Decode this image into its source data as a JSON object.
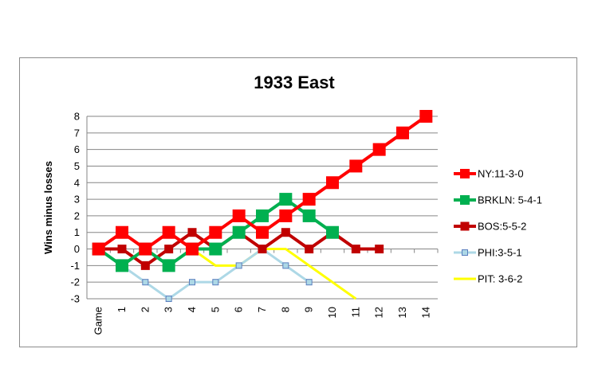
{
  "chart_data": {
    "type": "line",
    "title": "1933 East",
    "xlabel": "",
    "ylabel": "Wins minus losses",
    "categories": [
      "Game",
      "1",
      "2",
      "3",
      "4",
      "5",
      "6",
      "7",
      "8",
      "9",
      "10",
      "11",
      "12",
      "13",
      "14"
    ],
    "ylim": [
      -3,
      8
    ],
    "yticks": [
      8,
      7,
      6,
      5,
      4,
      3,
      2,
      1,
      0,
      -1,
      -2,
      -3
    ],
    "grid": "horizontal",
    "legend_position": "right",
    "series": [
      {
        "name": "NY:11-3-0",
        "color": "#ff0000",
        "marker": "square-large",
        "values": [
          0,
          1,
          0,
          1,
          0,
          1,
          2,
          1,
          2,
          3,
          4,
          5,
          6,
          7,
          8
        ]
      },
      {
        "name": "BRKLN: 5-4-1",
        "color": "#00b050",
        "marker": "square-large",
        "values": [
          0,
          -1,
          0,
          -1,
          0,
          0,
          1,
          2,
          3,
          2,
          1,
          null,
          null,
          null,
          null
        ]
      },
      {
        "name": "BOS:5-5-2",
        "color": "#c00000",
        "marker": "square",
        "values": [
          0,
          0,
          -1,
          0,
          1,
          0,
          1,
          0,
          1,
          0,
          1,
          0,
          0,
          null,
          null
        ]
      },
      {
        "name": "PHI:3-5-1",
        "color": "#add8e6",
        "marker": "square-small",
        "values": [
          0,
          -1,
          -2,
          -3,
          -2,
          -2,
          -1,
          0,
          -1,
          -2,
          null,
          null,
          null,
          null,
          null
        ]
      },
      {
        "name": "PIT: 3-6-2",
        "color": "#ffff00",
        "marker": "none",
        "values": [
          0,
          -1,
          0,
          -1,
          0,
          -1,
          -1,
          0,
          0,
          -1,
          -2,
          -3,
          null,
          null,
          null
        ]
      }
    ]
  }
}
